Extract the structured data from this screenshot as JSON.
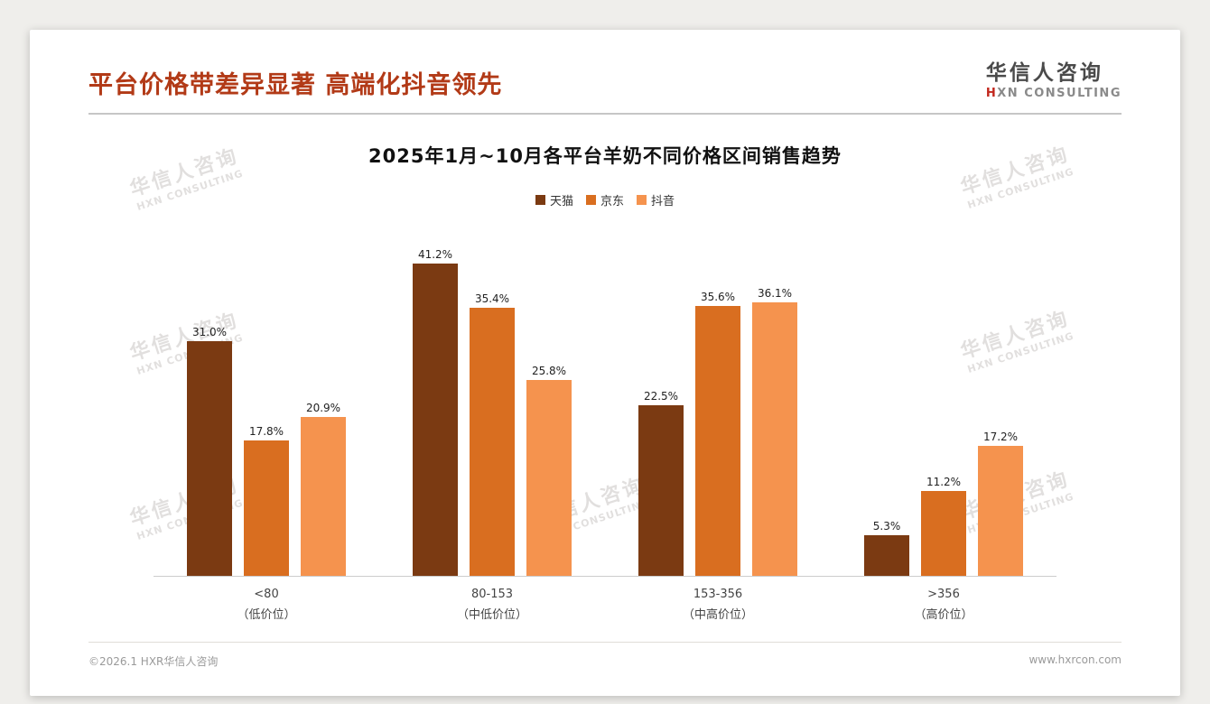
{
  "header": {
    "title": "平台价格带差异显著 高端化抖音领先",
    "logo": {
      "name": "华信人咨询",
      "sub_accent": "H",
      "sub_rest": "XN CONSULTING"
    }
  },
  "watermark": {
    "line1": "华信人咨询",
    "line2": "HXN CONSULTING"
  },
  "chart_data": {
    "type": "bar",
    "title": "2025年1月~10月各平台羊奶不同价格区间销售趋势",
    "categories": [
      "<80",
      "80-153",
      "153-356",
      ">356"
    ],
    "category_sublabels": [
      "（低价位）",
      "（中低价位）",
      "（中高价位）",
      "（高价位）"
    ],
    "series": [
      {
        "name": "天猫",
        "color": "#7b3a12",
        "values": [
          31.0,
          41.2,
          22.5,
          5.3
        ]
      },
      {
        "name": "京东",
        "color": "#d96e20",
        "values": [
          17.8,
          35.4,
          35.6,
          11.2
        ]
      },
      {
        "name": "抖音",
        "color": "#f5934e",
        "values": [
          20.9,
          25.8,
          36.1,
          17.2
        ]
      }
    ],
    "value_suffix": "%",
    "ylim": [
      0,
      44
    ],
    "grid": false,
    "legend_position": "top"
  },
  "footer": {
    "left": "©2026.1 HXR华信人咨询",
    "right": "www.hxrcon.com"
  }
}
